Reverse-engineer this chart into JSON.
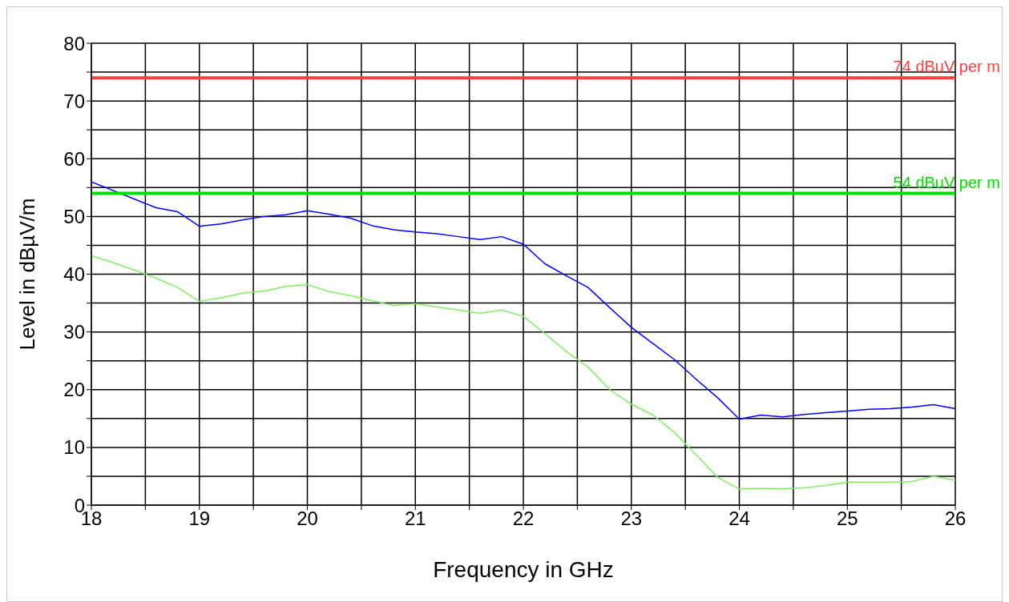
{
  "chart_data": {
    "type": "line",
    "xlabel": "Frequency in GHz",
    "ylabel": "Level in dBµV/m",
    "x": [
      18.0,
      18.2,
      18.4,
      18.6,
      18.8,
      19.0,
      19.2,
      19.4,
      19.6,
      19.8,
      20.0,
      20.2,
      20.4,
      20.6,
      20.8,
      21.0,
      21.2,
      21.4,
      21.6,
      21.8,
      22.0,
      22.2,
      22.4,
      22.6,
      22.8,
      23.0,
      23.2,
      23.4,
      23.6,
      23.8,
      24.0,
      24.2,
      24.4,
      24.6,
      24.8,
      25.0,
      25.2,
      25.4,
      25.6,
      25.8,
      26.0
    ],
    "series": [
      {
        "color": "#0000ff",
        "values": [
          56,
          54.5,
          53,
          51.5,
          50.8,
          48.3,
          48.7,
          49.4,
          50,
          50.3,
          51,
          50.4,
          49.7,
          48.4,
          47.7,
          47.3,
          47,
          46.5,
          46,
          46.5,
          45.2,
          41.8,
          39.7,
          37.7,
          34.2,
          30.8,
          28,
          25.2,
          21.8,
          18.6,
          14.9,
          15.6,
          15.3,
          15.7,
          16,
          16.3,
          16.6,
          16.7,
          17,
          17.4,
          16.7
        ]
      },
      {
        "color": "#80f060",
        "values": [
          43.2,
          42,
          40.7,
          39.3,
          37.7,
          35.3,
          35.9,
          36.7,
          37.1,
          37.9,
          38.2,
          37,
          36.3,
          35.4,
          34.6,
          34.9,
          34.3,
          33.8,
          33.2,
          33.8,
          32.7,
          29.7,
          26.6,
          23.9,
          20,
          17.5,
          15.6,
          12.6,
          8.7,
          4.8,
          2.8,
          2.9,
          2.8,
          3,
          3.4,
          4,
          4,
          4,
          4.1,
          5,
          4.3
        ]
      }
    ],
    "xlim": [
      18,
      26
    ],
    "xticks": [
      18,
      {
        "value": 18.5,
        "label": null
      },
      19,
      {
        "value": 19.5,
        "label": null
      },
      20,
      {
        "value": 20.5,
        "label": null
      },
      21,
      {
        "value": 21.5,
        "label": null
      },
      22,
      {
        "value": 22.5,
        "label": null
      },
      23,
      {
        "value": 23.5,
        "label": null
      },
      24,
      {
        "value": 24.5,
        "label": null
      },
      25,
      {
        "value": 25.5,
        "label": null
      },
      26
    ],
    "ylim": [
      0,
      80
    ],
    "yticks": [
      0,
      {
        "value": 5,
        "label": null
      },
      10,
      {
        "value": 15,
        "label": null
      },
      20,
      {
        "value": 25,
        "label": null
      },
      30,
      {
        "value": 35,
        "label": null
      },
      40,
      {
        "value": 45,
        "label": null
      },
      50,
      {
        "value": 55,
        "label": null
      },
      60,
      {
        "value": 65,
        "label": null
      },
      70,
      {
        "value": 75,
        "label": null
      },
      80
    ],
    "ref_lines": [
      {
        "axis": "y",
        "value": 74,
        "label": "74 dBuV per m",
        "color": "#ff4040"
      },
      {
        "axis": "y",
        "value": 54,
        "label": "54 dBuV per m",
        "color": "#00e000"
      }
    ],
    "grid": true,
    "marker": "none",
    "line_style": "solid"
  }
}
